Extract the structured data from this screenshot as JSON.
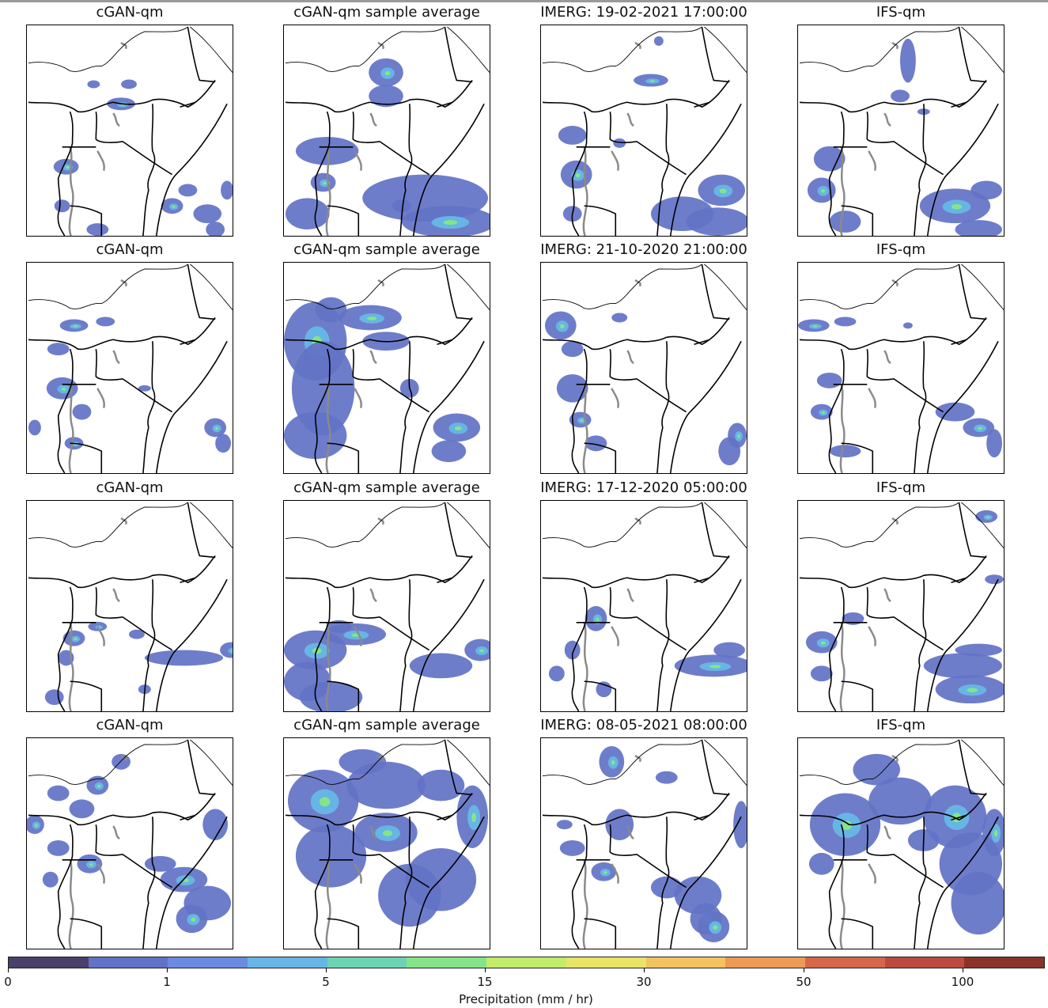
{
  "figure": {
    "rows": [
      {
        "titles": [
          "cGAN-qm",
          "cGAN-qm sample average",
          "IMERG: 19-02-2021 17:00:00",
          "IFS-qm"
        ]
      },
      {
        "titles": [
          "cGAN-qm",
          "cGAN-qm sample average",
          "IMERG: 21-10-2020 21:00:00",
          "IFS-qm"
        ]
      },
      {
        "titles": [
          "cGAN-qm",
          "cGAN-qm sample average",
          "IMERG: 17-12-2020 05:00:00",
          "IFS-qm"
        ]
      },
      {
        "titles": [
          "cGAN-qm",
          "cGAN-qm sample average",
          "IMERG: 08-05-2021 08:00:00",
          "IFS-qm"
        ]
      }
    ]
  },
  "colorbar": {
    "label": "Precipitation (mm / hr)",
    "ticks": [
      "0",
      "1",
      "5",
      "15",
      "30",
      "50",
      "100"
    ],
    "colors": [
      "#4b3f6b",
      "#6272c6",
      "#6b8be0",
      "#67b5e5",
      "#6cd3b3",
      "#85e48a",
      "#c2ec6a",
      "#e8e468",
      "#f2c35e",
      "#ec9a55",
      "#d7664a",
      "#bd4a3f",
      "#8a3329"
    ]
  }
}
